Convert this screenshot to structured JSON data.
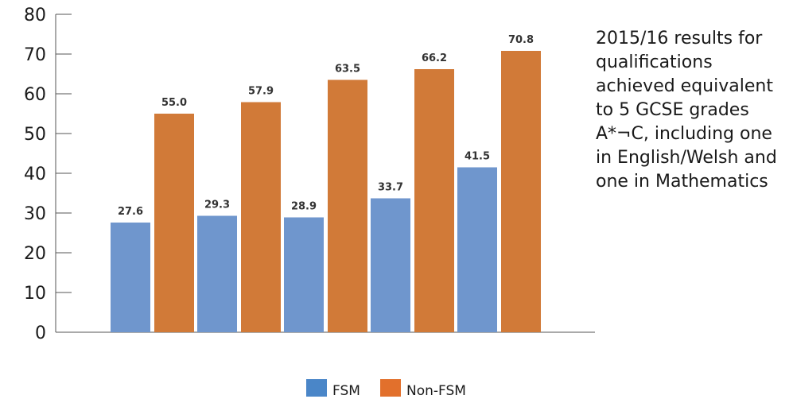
{
  "chart_data": {
    "type": "bar",
    "categories": [
      "",
      "",
      "",
      "",
      ""
    ],
    "series": [
      {
        "name": "FSM",
        "color": "#6f96cd",
        "values": [
          27.6,
          29.3,
          28.9,
          33.7,
          41.5
        ],
        "labels": [
          "27.6",
          "29.3",
          "28.9",
          "33.7",
          "41.5"
        ]
      },
      {
        "name": "Non-FSM",
        "color": "#d17a38",
        "values": [
          55.0,
          57.9,
          63.5,
          66.2,
          70.8
        ],
        "labels": [
          "55.0",
          "57.9",
          "63.5",
          "66.2",
          "70.8"
        ]
      }
    ],
    "ylim": [
      0,
      80
    ],
    "yticks": [
      "0",
      "10",
      "20",
      "30",
      "40",
      "50",
      "60",
      "70",
      "80"
    ],
    "grid": false,
    "legend": {
      "position": "bottom",
      "items": [
        {
          "label": "FSM",
          "color": "#4a86c8"
        },
        {
          "label": "Non-FSM",
          "color": "#e2702c"
        }
      ]
    },
    "annotation": "2015/16 results for qualifications achieved equivalent to 5 GCSE grades A*¬C, including one in English/Welsh and one in Mathematics"
  }
}
